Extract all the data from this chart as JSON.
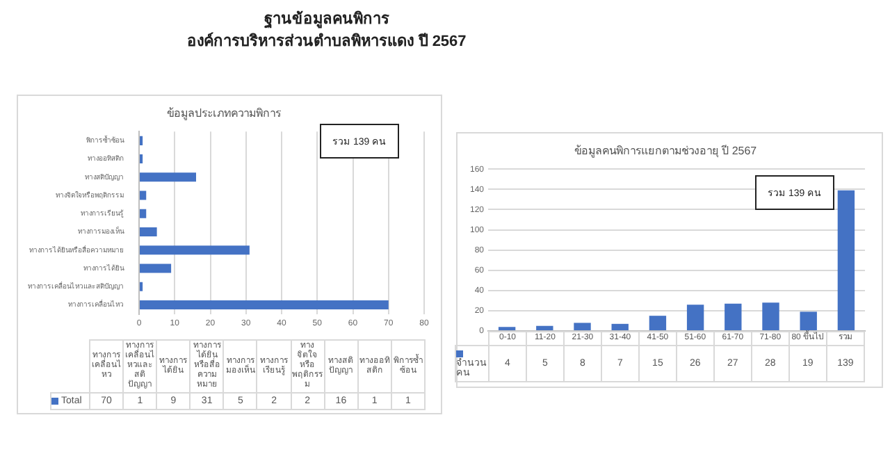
{
  "chart_data": [
    {
      "type": "other",
      "title": "ฐานข้อมูลคนพิการ",
      "subtitle": "องค์การบริหารส่วนตำบลพิหารแดง ปี 2567"
    },
    {
      "type": "bar",
      "orientation": "horizontal",
      "title": "ข้อมูลประเภทความพิการ",
      "categories": [
        "พิการซ้ำซ้อน",
        "ทางออทิสติก",
        "ทางสติปัญญา",
        "ทางจิตใจหรือพฤติกรรม",
        "ทางการเรียนรู้",
        "ทางการมองเห็น",
        "ทางการได้ยินหรือสื่อความหมาย",
        "ทางการได้ยิน",
        "ทางการเคลื่อนไหวและสติปัญญา",
        "ทางการเคลื่อนไหว"
      ],
      "series": [
        {
          "color": "#4472c4",
          "values": [
            1,
            1,
            16,
            2,
            2,
            5,
            31,
            9,
            1,
            70
          ]
        }
      ],
      "xlim": [
        0,
        80
      ],
      "xticks": [
        0,
        10,
        20,
        30,
        40,
        50,
        60,
        70,
        80
      ],
      "grid": "x",
      "annotations": [
        "รวม 139 คน"
      ]
    },
    {
      "type": "other",
      "categories": [
        "ทางการเคลื่อนไหว",
        "ทางการเคลื่อนไหวและสติปัญญา",
        "ทางการได้ยิน",
        "ทางการได้ยินหรือสื่อความหมาย",
        "ทางการมองเห็น",
        "ทางการเรียนรู้",
        "ทางจิตใจหรือพฤติกรรม",
        "ทางสติปัญญา",
        "ทางออทิสติก",
        "พิการซ้ำซ้อน"
      ],
      "series": [
        {
          "name": "Total",
          "color": "#4472c4",
          "values": [
            70,
            1,
            9,
            31,
            5,
            2,
            2,
            16,
            1,
            1
          ]
        }
      ],
      "legend": "left",
      "data_labels": true
    },
    {
      "type": "bar",
      "title": "ข้อมูลคนพิการแยกตามช่วงอายุ ปี 2567",
      "categories": [
        "0-10",
        "11-20",
        "21-30",
        "31-40",
        "41-50",
        "51-60",
        "61-70",
        "71-80",
        "80 ขึ้นไป",
        "รวม"
      ],
      "series": [
        {
          "name": "จำนวนคน",
          "color": "#4472c4",
          "values": [
            4,
            5,
            8,
            7,
            15,
            26,
            27,
            28,
            19,
            139
          ]
        }
      ],
      "ylim": [
        0,
        160
      ],
      "yticks": [
        0,
        20,
        40,
        60,
        80,
        100,
        120,
        140,
        160
      ],
      "grid": "y",
      "legend": "bottom",
      "data_labels": true,
      "annotations": [
        "รวม 139 คน"
      ]
    }
  ]
}
